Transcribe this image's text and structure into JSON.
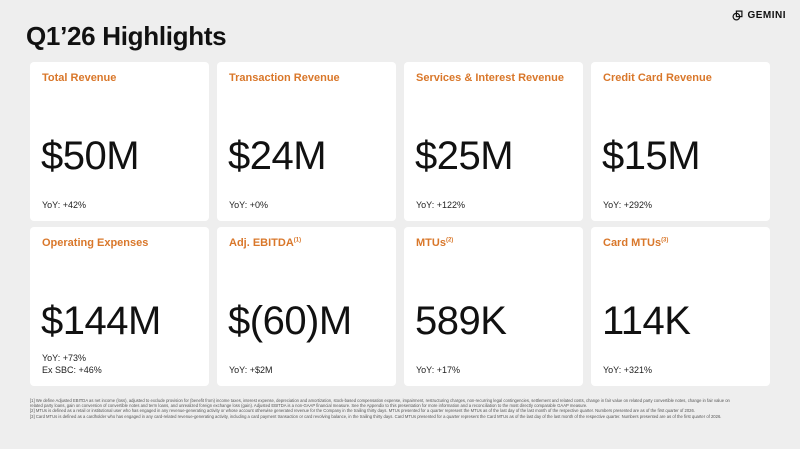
{
  "page": {
    "title": "Q1’26 Highlights"
  },
  "brand": {
    "name": "GEMINI",
    "icon": "gemini-logo-icon"
  },
  "cards": [
    {
      "title": "Total Revenue",
      "sup": "",
      "value": "$50M",
      "yoy": "YoY: +42%",
      "extra": ""
    },
    {
      "title": "Transaction Revenue",
      "sup": "",
      "value": "$24M",
      "yoy": "YoY: +0%",
      "extra": ""
    },
    {
      "title": "Services & Interest Revenue",
      "sup": "",
      "value": "$25M",
      "yoy": "YoY: +122%",
      "extra": ""
    },
    {
      "title": "Credit Card Revenue",
      "sup": "",
      "value": "$15M",
      "yoy": "YoY: +292%",
      "extra": ""
    },
    {
      "title": "Operating Expenses",
      "sup": "",
      "value": "$144M",
      "yoy": "YoY: +73%",
      "extra": "Ex SBC: +46%"
    },
    {
      "title": "Adj. EBITDA",
      "sup": "(1)",
      "value": "$(60)M",
      "yoy": "YoY: +$2M",
      "extra": ""
    },
    {
      "title": "MTUs",
      "sup": "(2)",
      "value": "589K",
      "yoy": "YoY: +17%",
      "extra": ""
    },
    {
      "title": "Card MTUs",
      "sup": "(3)",
      "value": "114K",
      "yoy": "YoY: +321%",
      "extra": ""
    }
  ],
  "footnotes": [
    "[1] We define Adjusted EBITDA as net income (loss), adjusted to exclude provision for (benefit from) income taxes, interest expense, depreciation and amortization, stock-based compensation expense, impairment, restructuring charges, non-recurring legal contingencies, settlement and related costs, change in fair value on related party convertible notes, change in fair value on related party loans, gain on conversion of convertible notes and term loans, and unrealized foreign exchange loss (gain). Adjusted EBITDA is a non-GAAP financial measure. See the Appendix to this presentation for more information and a reconciliation to the most directly comparable GAAP measure.",
    "[2] MTUs is defined as a retail or institutional user who has engaged in any revenue-generating activity or whose account otherwise generated revenue for the Company in the trailing thirty days. MTUs presented for a quarter represent the MTUs as of the last day of the last month of the respective quarter. Numbers presented are as of the first quarter of 2026.",
    "[3] Card MTUs is defined as a cardholder who has engaged in any card-related revenue-generating activity, including a card payment transaction or card revolving balance, in the trailing thirty days. Card MTUs presented for a quarter represent the Card MTUs as of the last day of the last month of the respective quarter. Numbers presented are as of the first quarter of 2026."
  ]
}
